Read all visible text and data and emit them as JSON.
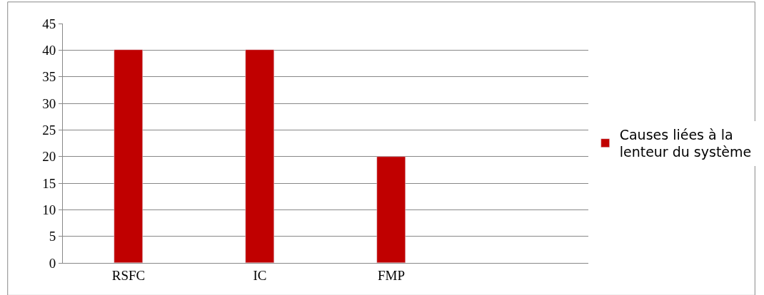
{
  "chart_data": {
    "type": "bar",
    "categories": [
      "RSFC",
      "IC",
      "FMP",
      null
    ],
    "series": [
      {
        "name": "Causes liées à la lenteur du système",
        "color": "#c00000",
        "values": [
          40,
          40,
          20,
          null
        ]
      }
    ],
    "ylim": [
      0,
      45
    ],
    "yticks": [
      0,
      5,
      10,
      15,
      20,
      25,
      30,
      35,
      40,
      45
    ],
    "grid": "y",
    "legend": "right"
  }
}
